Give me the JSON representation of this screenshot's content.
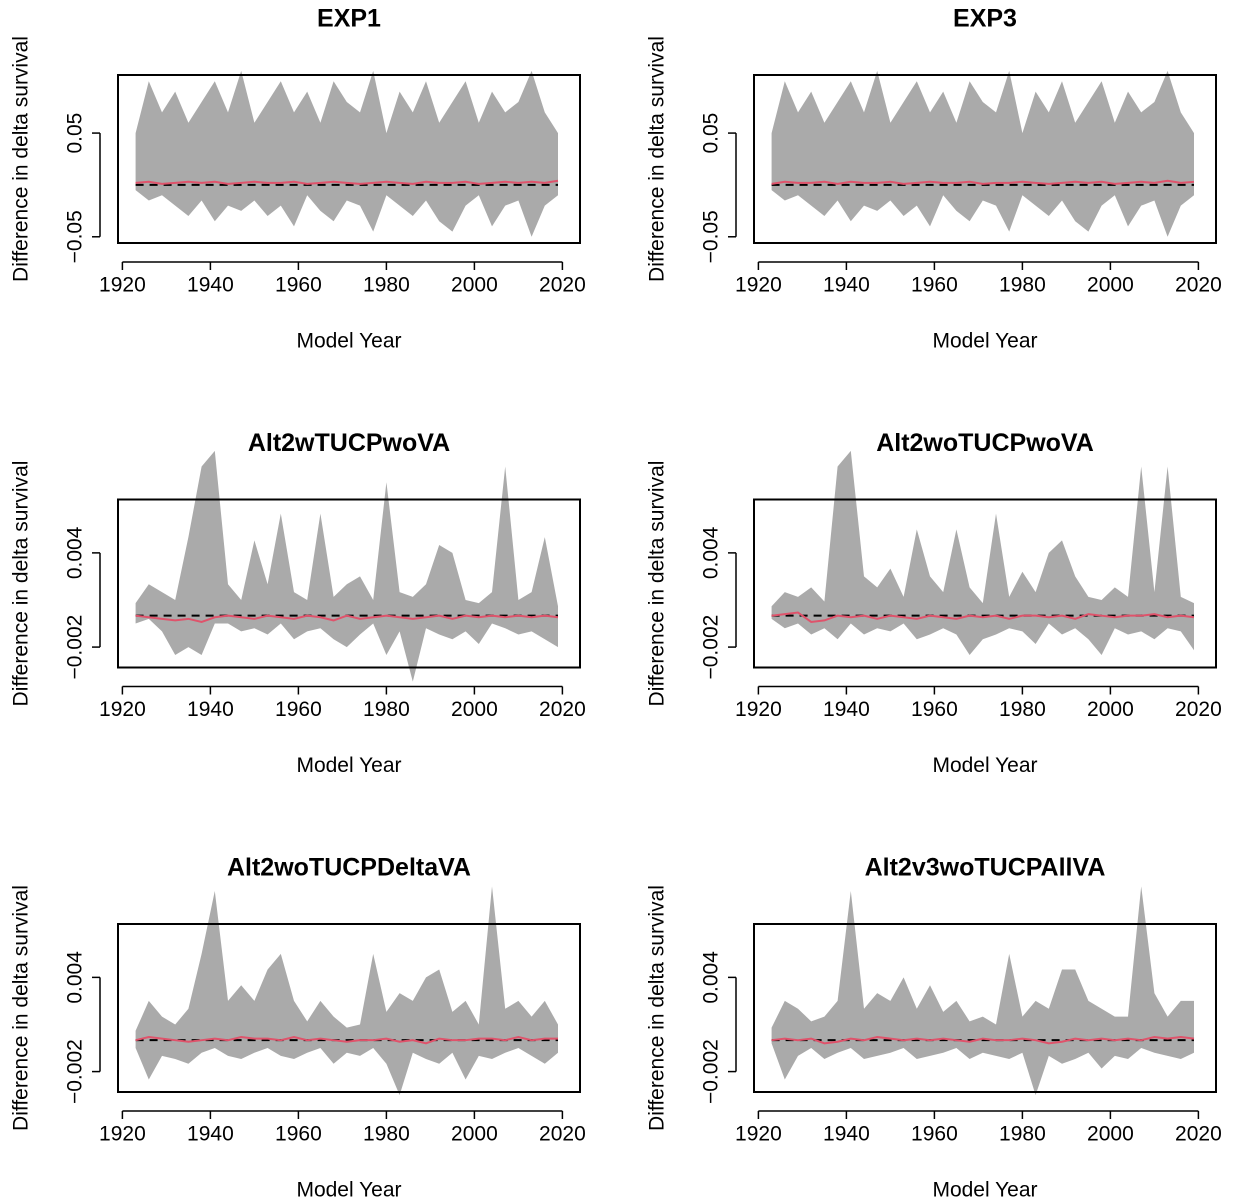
{
  "chart_data": [
    {
      "type": "band",
      "title": "EXP1",
      "xlabel": "Model Year",
      "ylabel": "Difference in delta survival",
      "xlim": [
        1919,
        2024
      ],
      "xticks": [
        1920,
        1940,
        1960,
        1980,
        2000,
        2020
      ],
      "ylim": [
        -0.056,
        0.106
      ],
      "yticks": [
        {
          "value": -0.05,
          "label": "−0.05"
        },
        0.05
      ],
      "reference_line": 0,
      "band_color": "#aaaaaa",
      "line_color": "#df536b",
      "x": [
        1923,
        1926,
        1929,
        1932,
        1935,
        1938,
        1941,
        1944,
        1947,
        1950,
        1953,
        1956,
        1959,
        1962,
        1965,
        1968,
        1971,
        1974,
        1977,
        1980,
        1983,
        1986,
        1989,
        1992,
        1995,
        1998,
        2001,
        2004,
        2007,
        2010,
        2013,
        2016,
        2019
      ],
      "upper": [
        0.05,
        0.1,
        0.07,
        0.09,
        0.06,
        0.08,
        0.1,
        0.07,
        0.11,
        0.06,
        0.08,
        0.1,
        0.07,
        0.09,
        0.06,
        0.1,
        0.08,
        0.07,
        0.11,
        0.05,
        0.09,
        0.07,
        0.1,
        0.06,
        0.08,
        0.1,
        0.06,
        0.09,
        0.07,
        0.08,
        0.11,
        0.07,
        0.05
      ],
      "lower": [
        -0.005,
        -0.015,
        -0.01,
        -0.02,
        -0.03,
        -0.015,
        -0.035,
        -0.02,
        -0.025,
        -0.015,
        -0.03,
        -0.02,
        -0.04,
        -0.01,
        -0.025,
        -0.035,
        -0.015,
        -0.02,
        -0.045,
        -0.01,
        -0.02,
        -0.03,
        -0.015,
        -0.035,
        -0.045,
        -0.02,
        -0.01,
        -0.04,
        -0.02,
        -0.015,
        -0.05,
        -0.02,
        -0.01
      ],
      "median": [
        0.002,
        0.003,
        0.001,
        0.002,
        0.003,
        0.002,
        0.003,
        0.001,
        0.002,
        0.003,
        0.002,
        0.002,
        0.003,
        0.001,
        0.002,
        0.003,
        0.002,
        0.001,
        0.002,
        0.003,
        0.002,
        0.001,
        0.003,
        0.002,
        0.002,
        0.003,
        0.001,
        0.002,
        0.003,
        0.002,
        0.003,
        0.002,
        0.004
      ]
    },
    {
      "type": "band",
      "title": "EXP3",
      "xlabel": "Model Year",
      "ylabel": "Difference in delta survival",
      "xlim": [
        1919,
        2024
      ],
      "xticks": [
        1920,
        1940,
        1960,
        1980,
        2000,
        2020
      ],
      "ylim": [
        -0.056,
        0.106
      ],
      "yticks": [
        {
          "value": -0.05,
          "label": "−0.05"
        },
        0.05
      ],
      "reference_line": 0,
      "band_color": "#aaaaaa",
      "line_color": "#df536b",
      "x": [
        1923,
        1926,
        1929,
        1932,
        1935,
        1938,
        1941,
        1944,
        1947,
        1950,
        1953,
        1956,
        1959,
        1962,
        1965,
        1968,
        1971,
        1974,
        1977,
        1980,
        1983,
        1986,
        1989,
        1992,
        1995,
        1998,
        2001,
        2004,
        2007,
        2010,
        2013,
        2016,
        2019
      ],
      "upper": [
        0.05,
        0.1,
        0.07,
        0.09,
        0.06,
        0.08,
        0.1,
        0.07,
        0.11,
        0.06,
        0.08,
        0.1,
        0.07,
        0.09,
        0.06,
        0.1,
        0.08,
        0.07,
        0.11,
        0.05,
        0.09,
        0.07,
        0.1,
        0.06,
        0.08,
        0.1,
        0.06,
        0.09,
        0.07,
        0.08,
        0.11,
        0.07,
        0.05
      ],
      "lower": [
        -0.005,
        -0.015,
        -0.01,
        -0.02,
        -0.03,
        -0.015,
        -0.035,
        -0.02,
        -0.025,
        -0.015,
        -0.03,
        -0.02,
        -0.04,
        -0.01,
        -0.025,
        -0.035,
        -0.015,
        -0.02,
        -0.045,
        -0.01,
        -0.02,
        -0.03,
        -0.015,
        -0.035,
        -0.045,
        -0.02,
        -0.01,
        -0.04,
        -0.02,
        -0.015,
        -0.05,
        -0.02,
        -0.01
      ],
      "median": [
        0.001,
        0.003,
        0.002,
        0.002,
        0.003,
        0.001,
        0.003,
        0.002,
        0.002,
        0.003,
        0.001,
        0.002,
        0.003,
        0.002,
        0.002,
        0.003,
        0.001,
        0.002,
        0.002,
        0.003,
        0.002,
        0.001,
        0.002,
        0.003,
        0.002,
        0.003,
        0.001,
        0.002,
        0.003,
        0.002,
        0.004,
        0.002,
        0.003
      ]
    },
    {
      "type": "band",
      "title": "Alt2wTUCPwoVA",
      "xlabel": "Model Year",
      "ylabel": "Difference in delta survival",
      "xlim": [
        1919,
        2024
      ],
      "xticks": [
        1920,
        1940,
        1960,
        1980,
        2000,
        2020
      ],
      "ylim": [
        -0.0033,
        0.0074
      ],
      "yticks": [
        {
          "value": -0.002,
          "label": "−0.002"
        },
        0.004
      ],
      "reference_line": 0,
      "band_color": "#aaaaaa",
      "line_color": "#df536b",
      "x": [
        1923,
        1926,
        1929,
        1932,
        1935,
        1938,
        1941,
        1944,
        1947,
        1950,
        1953,
        1956,
        1959,
        1962,
        1965,
        1968,
        1971,
        1974,
        1977,
        1980,
        1983,
        1986,
        1989,
        1992,
        1995,
        1998,
        2001,
        2004,
        2007,
        2010,
        2013,
        2016,
        2019
      ],
      "upper": [
        0.0008,
        0.002,
        0.0015,
        0.001,
        0.005,
        0.0095,
        0.0105,
        0.002,
        0.001,
        0.0048,
        0.002,
        0.0065,
        0.0015,
        0.001,
        0.0065,
        0.0012,
        0.002,
        0.0025,
        0.001,
        0.0085,
        0.0015,
        0.0012,
        0.002,
        0.0045,
        0.004,
        0.001,
        0.0008,
        0.0015,
        0.0095,
        0.001,
        0.0015,
        0.005,
        0.0006
      ],
      "lower": [
        -0.0005,
        -0.0002,
        -0.001,
        -0.0025,
        -0.002,
        -0.0025,
        -0.0005,
        -0.0005,
        -0.001,
        -0.0008,
        -0.0012,
        -0.0005,
        -0.0015,
        -0.001,
        -0.0008,
        -0.0015,
        -0.002,
        -0.0012,
        -0.0005,
        -0.0025,
        -0.001,
        -0.0042,
        -0.0008,
        -0.0012,
        -0.0015,
        -0.001,
        -0.0018,
        -0.0005,
        -0.0008,
        -0.0012,
        -0.001,
        -0.0015,
        -0.002
      ],
      "median": [
        0,
        -0.0001,
        -0.0002,
        -0.0003,
        -0.0002,
        -0.0004,
        -0.0001,
        0,
        -0.0001,
        -0.0002,
        0,
        -0.0001,
        -0.0002,
        0,
        -0.0001,
        -0.0003,
        0,
        -0.0002,
        -0.0001,
        0,
        -0.0001,
        -0.0002,
        -0.0001,
        0,
        -0.0002,
        0,
        -0.0001,
        0,
        -0.0001,
        0,
        -0.0001,
        0,
        -0.0001
      ]
    },
    {
      "type": "band",
      "title": "Alt2woTUCPwoVA",
      "xlabel": "Model Year",
      "ylabel": "Difference in delta survival",
      "xlim": [
        1919,
        2024
      ],
      "xticks": [
        1920,
        1940,
        1960,
        1980,
        2000,
        2020
      ],
      "ylim": [
        -0.0033,
        0.0074
      ],
      "yticks": [
        {
          "value": -0.002,
          "label": "−0.002"
        },
        0.004
      ],
      "reference_line": 0,
      "band_color": "#aaaaaa",
      "line_color": "#df536b",
      "x": [
        1923,
        1926,
        1929,
        1932,
        1935,
        1938,
        1941,
        1944,
        1947,
        1950,
        1953,
        1956,
        1959,
        1962,
        1965,
        1968,
        1971,
        1974,
        1977,
        1980,
        1983,
        1986,
        1989,
        1992,
        1995,
        1998,
        2001,
        2004,
        2007,
        2010,
        2013,
        2016,
        2019
      ],
      "upper": [
        0.0006,
        0.0015,
        0.0012,
        0.0018,
        0.0009,
        0.0095,
        0.0105,
        0.0025,
        0.0018,
        0.003,
        0.0012,
        0.0055,
        0.0025,
        0.0015,
        0.0055,
        0.0018,
        0.0008,
        0.0065,
        0.0012,
        0.0028,
        0.0015,
        0.004,
        0.0048,
        0.0025,
        0.0012,
        0.001,
        0.0018,
        0.0012,
        0.0095,
        0.0015,
        0.0095,
        0.0012,
        0.0008
      ],
      "lower": [
        -0.0002,
        -0.0008,
        -0.0005,
        -0.0012,
        -0.0008,
        -0.0015,
        -0.0005,
        -0.0012,
        -0.0008,
        -0.001,
        -0.0005,
        -0.0015,
        -0.0012,
        -0.0008,
        -0.0012,
        -0.0025,
        -0.0015,
        -0.0012,
        -0.0008,
        -0.001,
        -0.0018,
        -0.0005,
        -0.0012,
        -0.0008,
        -0.0015,
        -0.0025,
        -0.0008,
        -0.0012,
        -0.001,
        -0.0015,
        -0.0008,
        -0.001,
        -0.0022
      ],
      "median": [
        0,
        0.0001,
        0.0002,
        -0.0004,
        -0.0003,
        0,
        -0.0001,
        0,
        -0.0002,
        0,
        -0.0001,
        -0.0002,
        0,
        -0.0001,
        -0.0002,
        0,
        -0.0001,
        0,
        -0.0002,
        0,
        0,
        -0.0001,
        0,
        -0.0002,
        0.0001,
        0,
        -0.0001,
        0,
        0,
        0.0001,
        -0.0001,
        0,
        -0.0001
      ]
    },
    {
      "type": "band",
      "title": "Alt2woTUCPDeltaVA",
      "xlabel": "Model Year",
      "ylabel": "Difference in delta survival",
      "xlim": [
        1919,
        2024
      ],
      "xticks": [
        1920,
        1940,
        1960,
        1980,
        2000,
        2020
      ],
      "ylim": [
        -0.0033,
        0.0074
      ],
      "yticks": [
        {
          "value": -0.002,
          "label": "−0.002"
        },
        0.004
      ],
      "reference_line": 0,
      "band_color": "#aaaaaa",
      "line_color": "#df536b",
      "x": [
        1923,
        1926,
        1929,
        1932,
        1935,
        1938,
        1941,
        1944,
        1947,
        1950,
        1953,
        1956,
        1959,
        1962,
        1965,
        1968,
        1971,
        1974,
        1977,
        1980,
        1983,
        1986,
        1989,
        1992,
        1995,
        1998,
        2001,
        2004,
        2007,
        2010,
        2013,
        2016,
        2019
      ],
      "upper": [
        0.0006,
        0.0025,
        0.0015,
        0.001,
        0.002,
        0.0055,
        0.0095,
        0.0025,
        0.0035,
        0.0025,
        0.0045,
        0.0055,
        0.0025,
        0.0012,
        0.0025,
        0.0015,
        0.0008,
        0.001,
        0.0055,
        0.0018,
        0.003,
        0.0025,
        0.004,
        0.0045,
        0.0018,
        0.0025,
        0.001,
        0.0098,
        0.002,
        0.0025,
        0.0015,
        0.0025,
        0.001
      ],
      "lower": [
        -0.0005,
        -0.0025,
        -0.001,
        -0.0012,
        -0.0015,
        -0.0008,
        -0.0005,
        -0.001,
        -0.0012,
        -0.0008,
        -0.0005,
        -0.001,
        -0.0012,
        -0.0008,
        -0.0005,
        -0.0015,
        -0.0008,
        -0.001,
        -0.0005,
        -0.0015,
        -0.0035,
        -0.0008,
        -0.0012,
        -0.0015,
        -0.0008,
        -0.0025,
        -0.001,
        -0.0012,
        -0.0008,
        -0.0005,
        -0.001,
        -0.0015,
        -0.0008
      ],
      "median": [
        0,
        0.0002,
        0.0001,
        0,
        -0.0001,
        0,
        0.0001,
        0,
        0.0002,
        0.0001,
        0.0001,
        0,
        0.0002,
        0,
        0.0001,
        0,
        -0.0001,
        0,
        0,
        0.0001,
        -0.0001,
        0,
        -0.0002,
        0.0001,
        0,
        0,
        0.0001,
        0.0001,
        0,
        0.0002,
        0,
        0.0001,
        0.0001
      ]
    },
    {
      "type": "band",
      "title": "Alt2v3woTUCPAllVA",
      "xlabel": "Model Year",
      "ylabel": "Difference in delta survival",
      "xlim": [
        1919,
        2024
      ],
      "xticks": [
        1920,
        1940,
        1960,
        1980,
        2000,
        2020
      ],
      "ylim": [
        -0.0033,
        0.0074
      ],
      "yticks": [
        {
          "value": -0.002,
          "label": "−0.002"
        },
        0.004
      ],
      "reference_line": 0,
      "band_color": "#aaaaaa",
      "line_color": "#df536b",
      "x": [
        1923,
        1926,
        1929,
        1932,
        1935,
        1938,
        1941,
        1944,
        1947,
        1950,
        1953,
        1956,
        1959,
        1962,
        1965,
        1968,
        1971,
        1974,
        1977,
        1980,
        1983,
        1986,
        1989,
        1992,
        1995,
        1998,
        2001,
        2004,
        2007,
        2010,
        2013,
        2016,
        2019
      ],
      "upper": [
        0.0008,
        0.0025,
        0.002,
        0.0012,
        0.0015,
        0.0025,
        0.0095,
        0.002,
        0.003,
        0.0025,
        0.004,
        0.002,
        0.0035,
        0.0018,
        0.0025,
        0.0012,
        0.0015,
        0.001,
        0.0055,
        0.0015,
        0.0025,
        0.002,
        0.0045,
        0.0045,
        0.0025,
        0.002,
        0.0015,
        0.0015,
        0.0098,
        0.003,
        0.0015,
        0.0025,
        0.0025
      ],
      "lower": [
        -0.0002,
        -0.0025,
        -0.001,
        -0.0005,
        -0.0012,
        -0.0008,
        -0.0005,
        -0.0012,
        -0.001,
        -0.0008,
        -0.0005,
        -0.0012,
        -0.001,
        -0.0008,
        -0.0005,
        -0.0012,
        -0.0008,
        -0.001,
        -0.0012,
        -0.0008,
        -0.0035,
        -0.001,
        -0.0015,
        -0.0012,
        -0.0008,
        -0.0018,
        -0.001,
        -0.0012,
        -0.0005,
        -0.0008,
        -0.001,
        -0.0012,
        -0.0008
      ],
      "median": [
        0,
        0.0001,
        0,
        0.0001,
        -0.0002,
        -0.0001,
        0.0001,
        0,
        0.0002,
        0.0001,
        0,
        0.0001,
        0,
        0.0001,
        0,
        -0.0001,
        0.0001,
        0,
        0,
        0.0001,
        0,
        -0.0002,
        -0.0001,
        0.0001,
        0,
        0.0001,
        0,
        0.0001,
        0,
        0.0002,
        0.0001,
        0.0002,
        0.0001
      ]
    }
  ]
}
